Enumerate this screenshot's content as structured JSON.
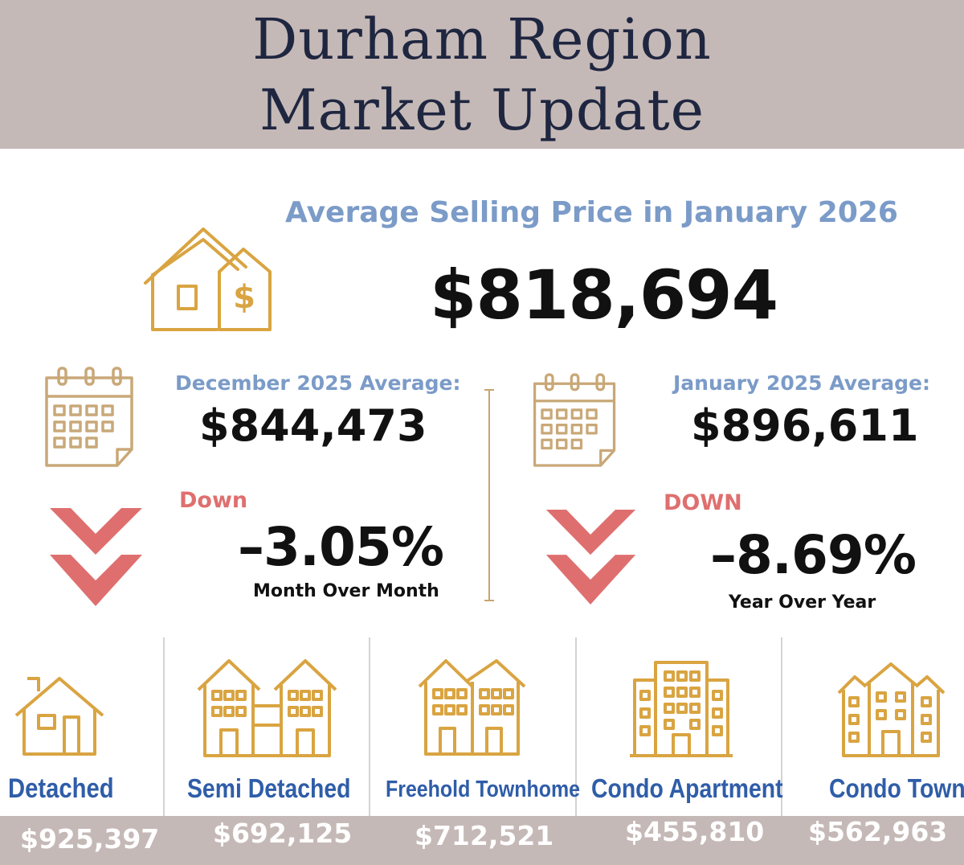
{
  "header": {
    "title_line1": "Durham Region",
    "title_line2": "Market Update"
  },
  "average": {
    "heading": "Average Selling Price in January 2026",
    "price": "$818,694"
  },
  "month_comparison": {
    "label": "December  2025 Average:",
    "value": "$844,473",
    "direction": "Down",
    "change": "–3.05%",
    "period": "Month Over Month"
  },
  "year_comparison": {
    "label": "January 2025 Average:",
    "value": "$896,611",
    "direction": "DOWN",
    "change": "–8.69%",
    "period": "Year Over Year"
  },
  "property_types": [
    {
      "label": "Detached",
      "price": "$925,397"
    },
    {
      "label": "Semi Detached",
      "price": "$692,125"
    },
    {
      "label": "Freehold Townhome",
      "price": "$712,521"
    },
    {
      "label": "Condo Apartment",
      "price": "$455,810"
    },
    {
      "label": "Condo Town",
      "price": "$562,963"
    }
  ],
  "colors": {
    "header_bg": "#c5b9b7",
    "accent_blue": "#7b9bc8",
    "icon_gold": "#d9a441",
    "down_red": "#df6f6f",
    "type_blue": "#2f5da8"
  }
}
